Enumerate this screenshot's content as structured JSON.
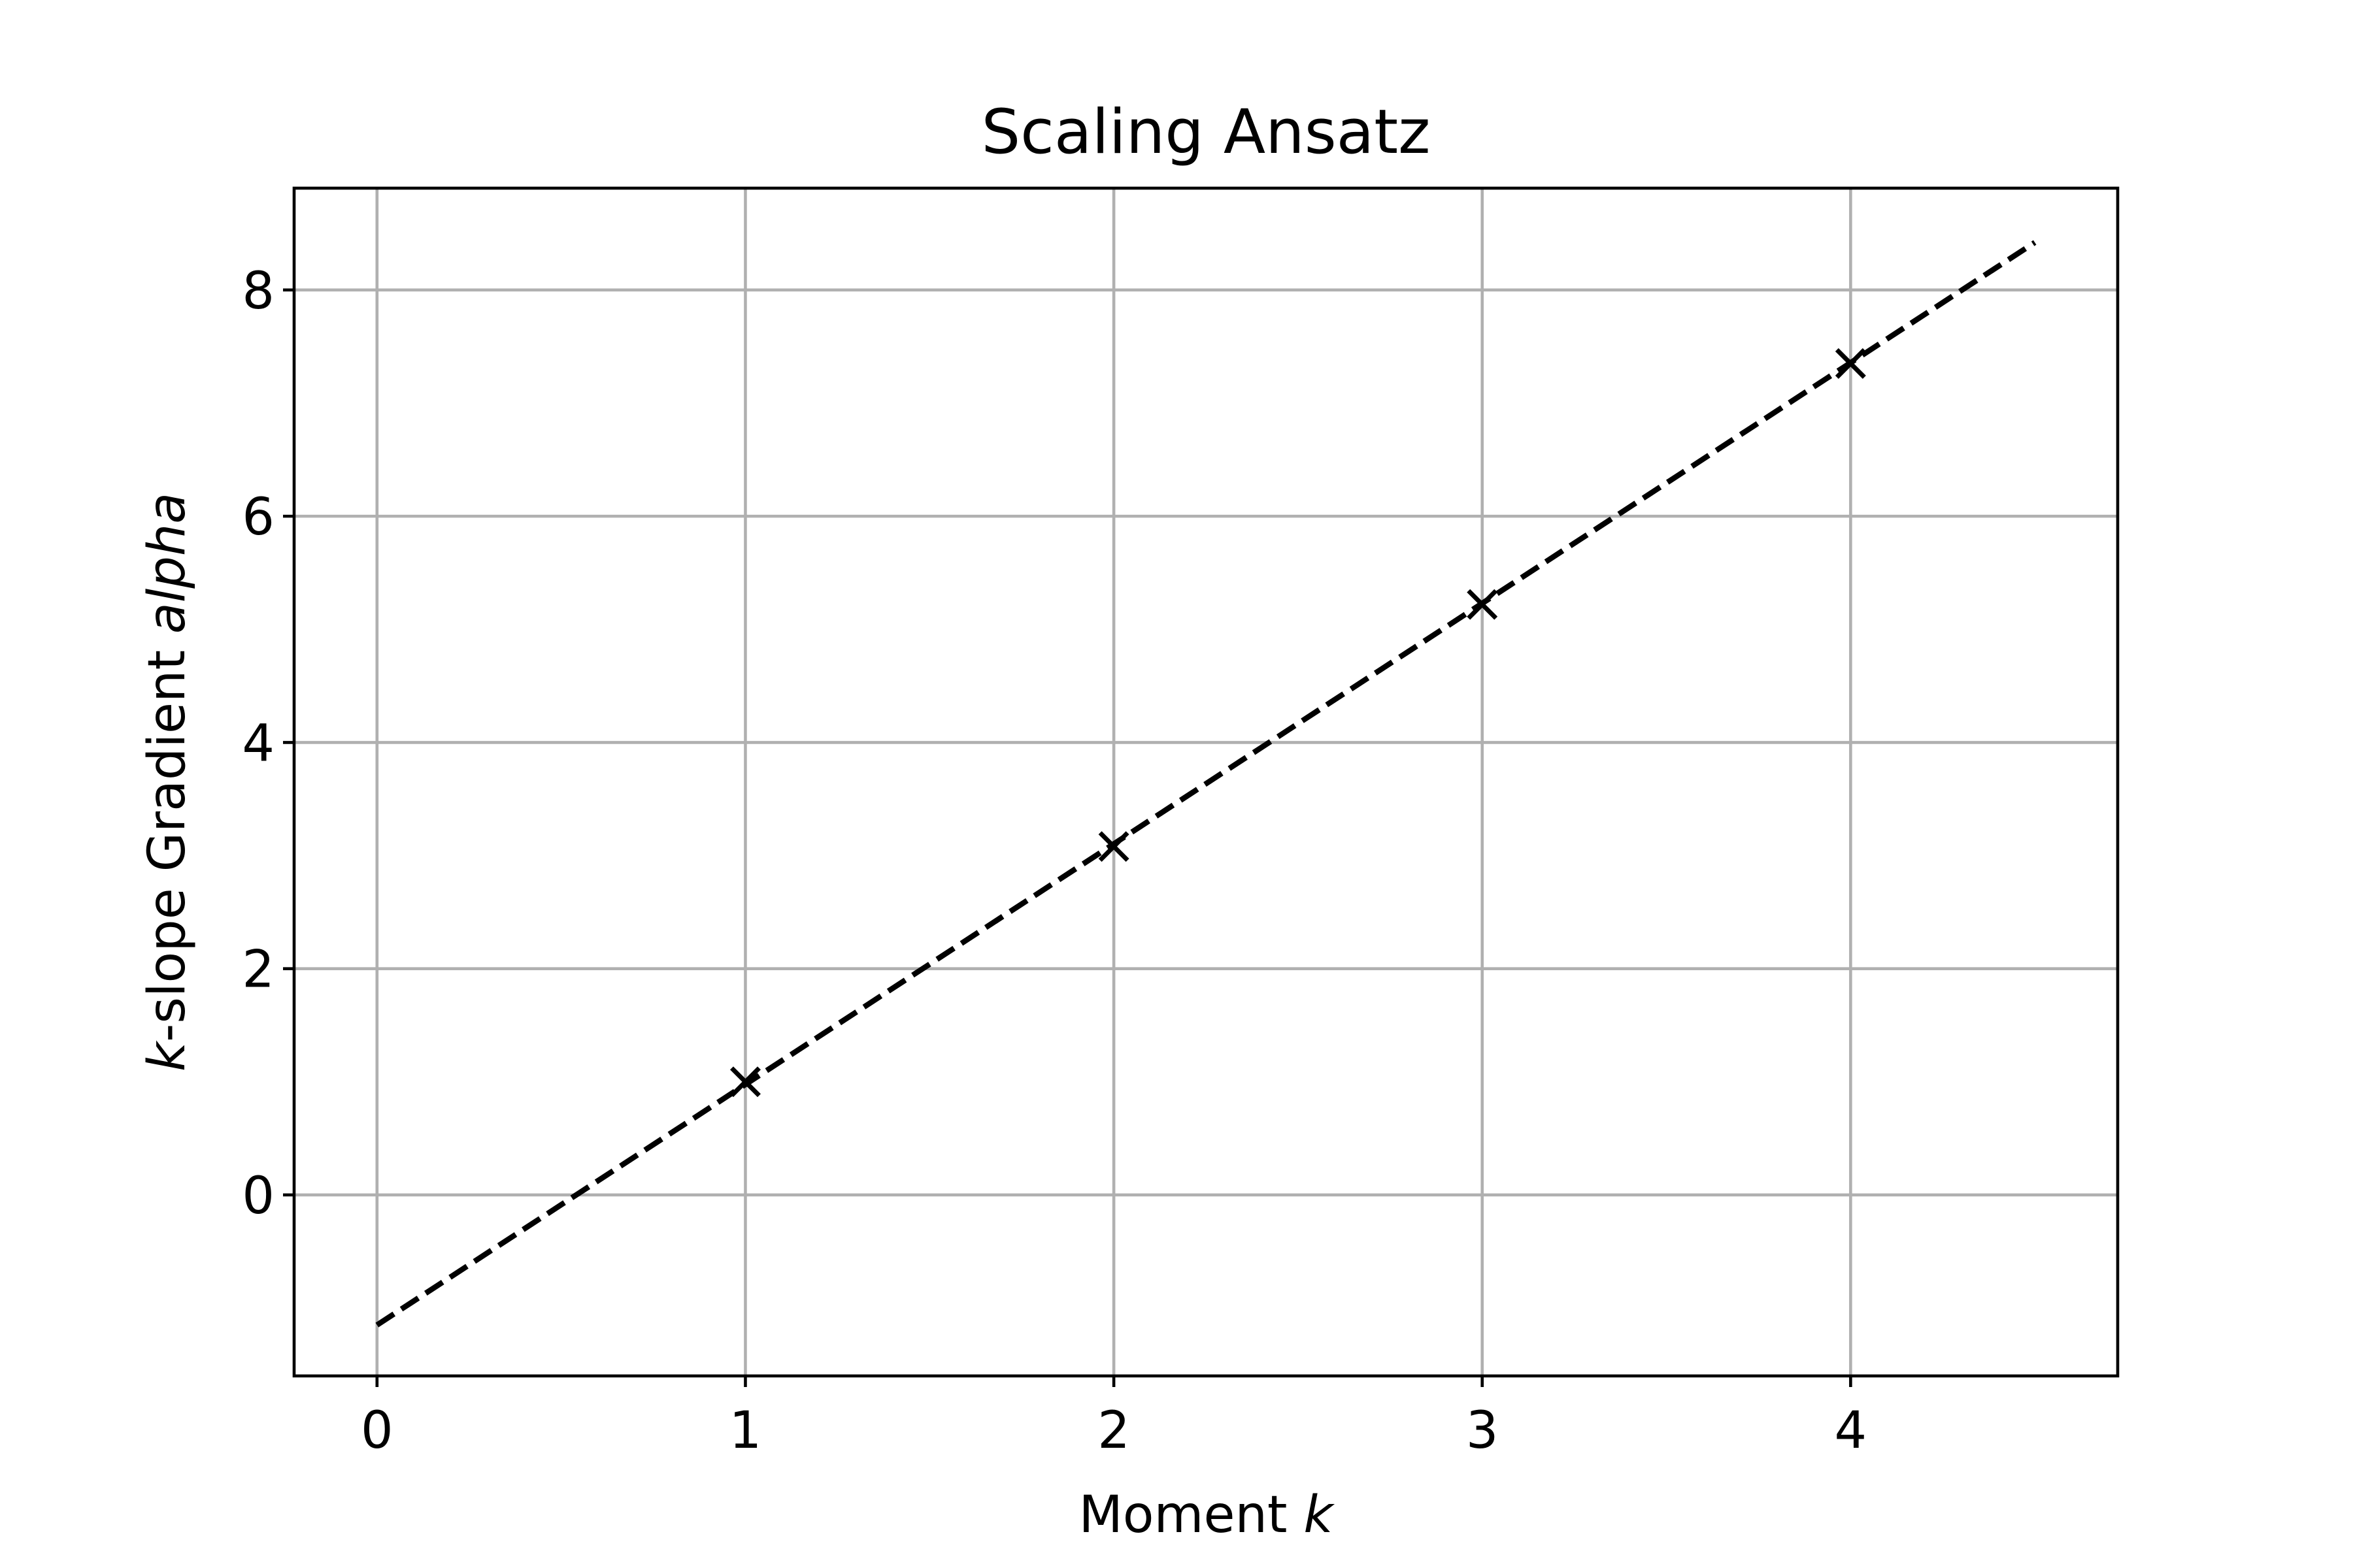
{
  "chart_data": {
    "type": "scatter",
    "title": "Scaling Ansatz",
    "xlabel": {
      "text": "Moment ",
      "var": "k"
    },
    "ylabel": {
      "var_prefix": "k",
      "middle": "-slope Gradient ",
      "var_suffix": "alpha"
    },
    "xlim": [
      -0.225,
      4.725
    ],
    "ylim": [
      -1.6,
      8.9
    ],
    "xticks": [
      0,
      1,
      2,
      3,
      4
    ],
    "yticks": [
      0,
      2,
      4,
      6,
      8
    ],
    "grid": true,
    "series": [
      {
        "kind": "scatter",
        "marker": "x",
        "color": "#000000",
        "x": [
          1,
          2,
          3,
          4
        ],
        "y": [
          1.0,
          3.08,
          5.22,
          7.35
        ]
      },
      {
        "kind": "line",
        "style": "dashed",
        "color": "#000000",
        "x": [
          0,
          4.5
        ],
        "y": [
          -1.15,
          8.42
        ]
      }
    ]
  }
}
